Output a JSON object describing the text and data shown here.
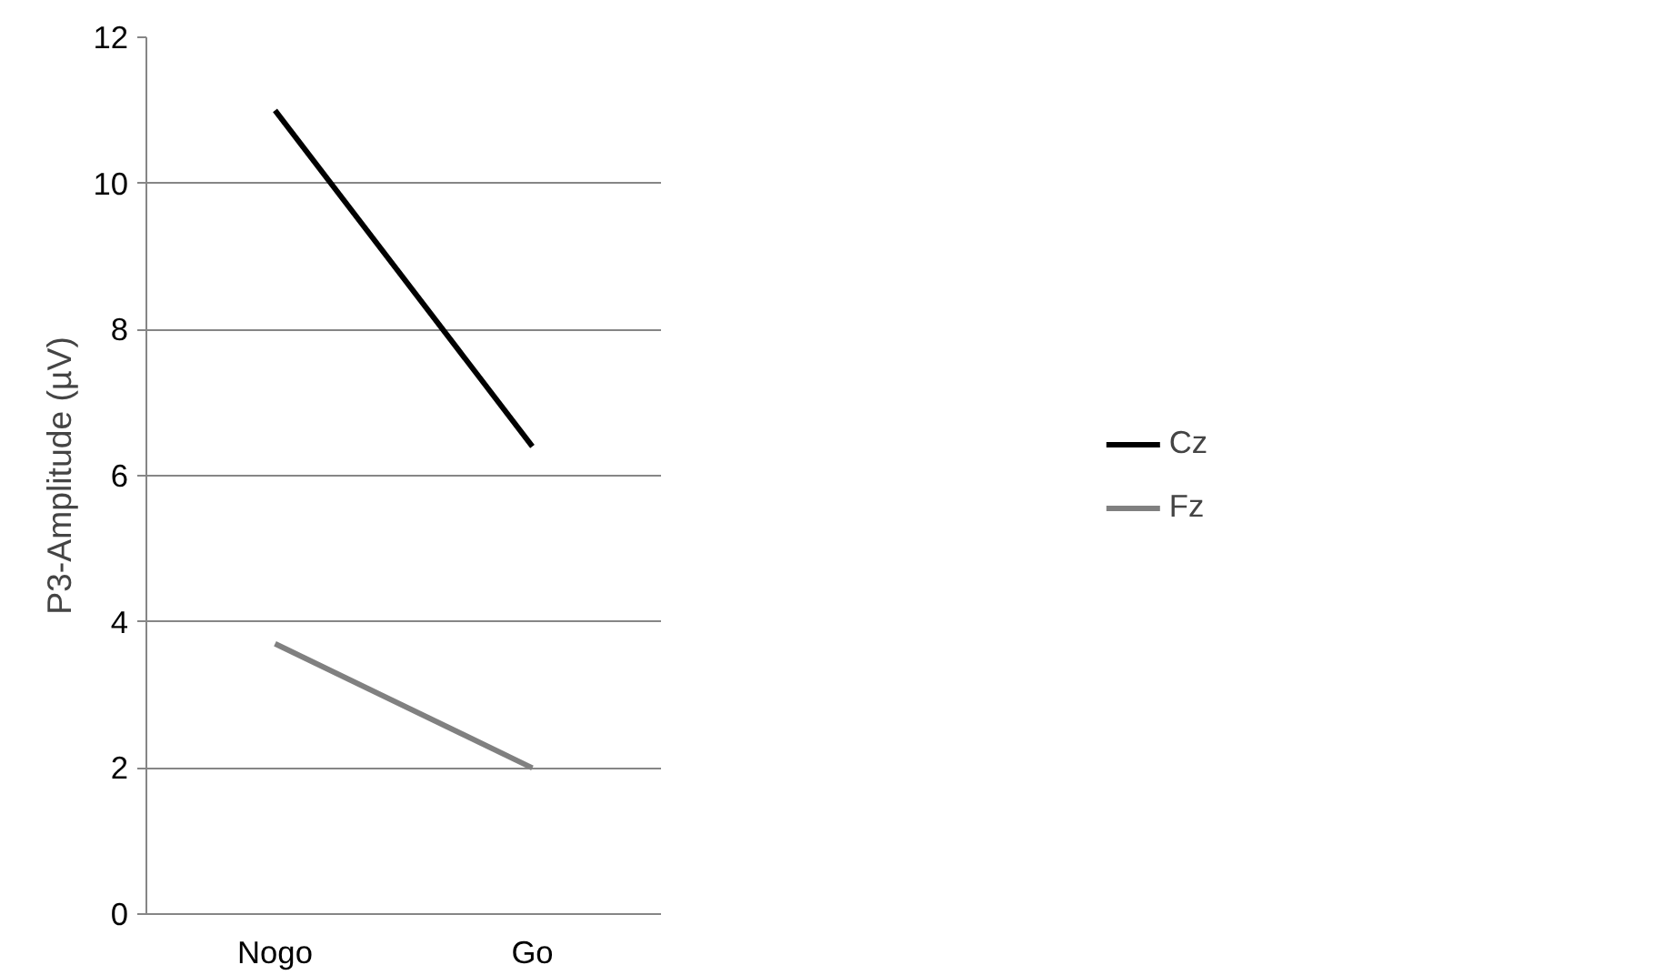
{
  "chart_data": {
    "type": "line",
    "ylabel": "P3-Amplitude (µV)",
    "categories": [
      "Nogo",
      "Go"
    ],
    "series": [
      {
        "name": "Cz",
        "color": "#000000",
        "values": [
          11.0,
          6.4
        ]
      },
      {
        "name": "Fz",
        "color": "#808080",
        "values": [
          3.7,
          2.0
        ]
      }
    ],
    "ylim": [
      0,
      12
    ],
    "yticks": [
      0,
      2,
      4,
      6,
      8,
      10,
      12
    ],
    "grid": "y",
    "legend": "right",
    "marker": "none",
    "line_style": "solid"
  }
}
